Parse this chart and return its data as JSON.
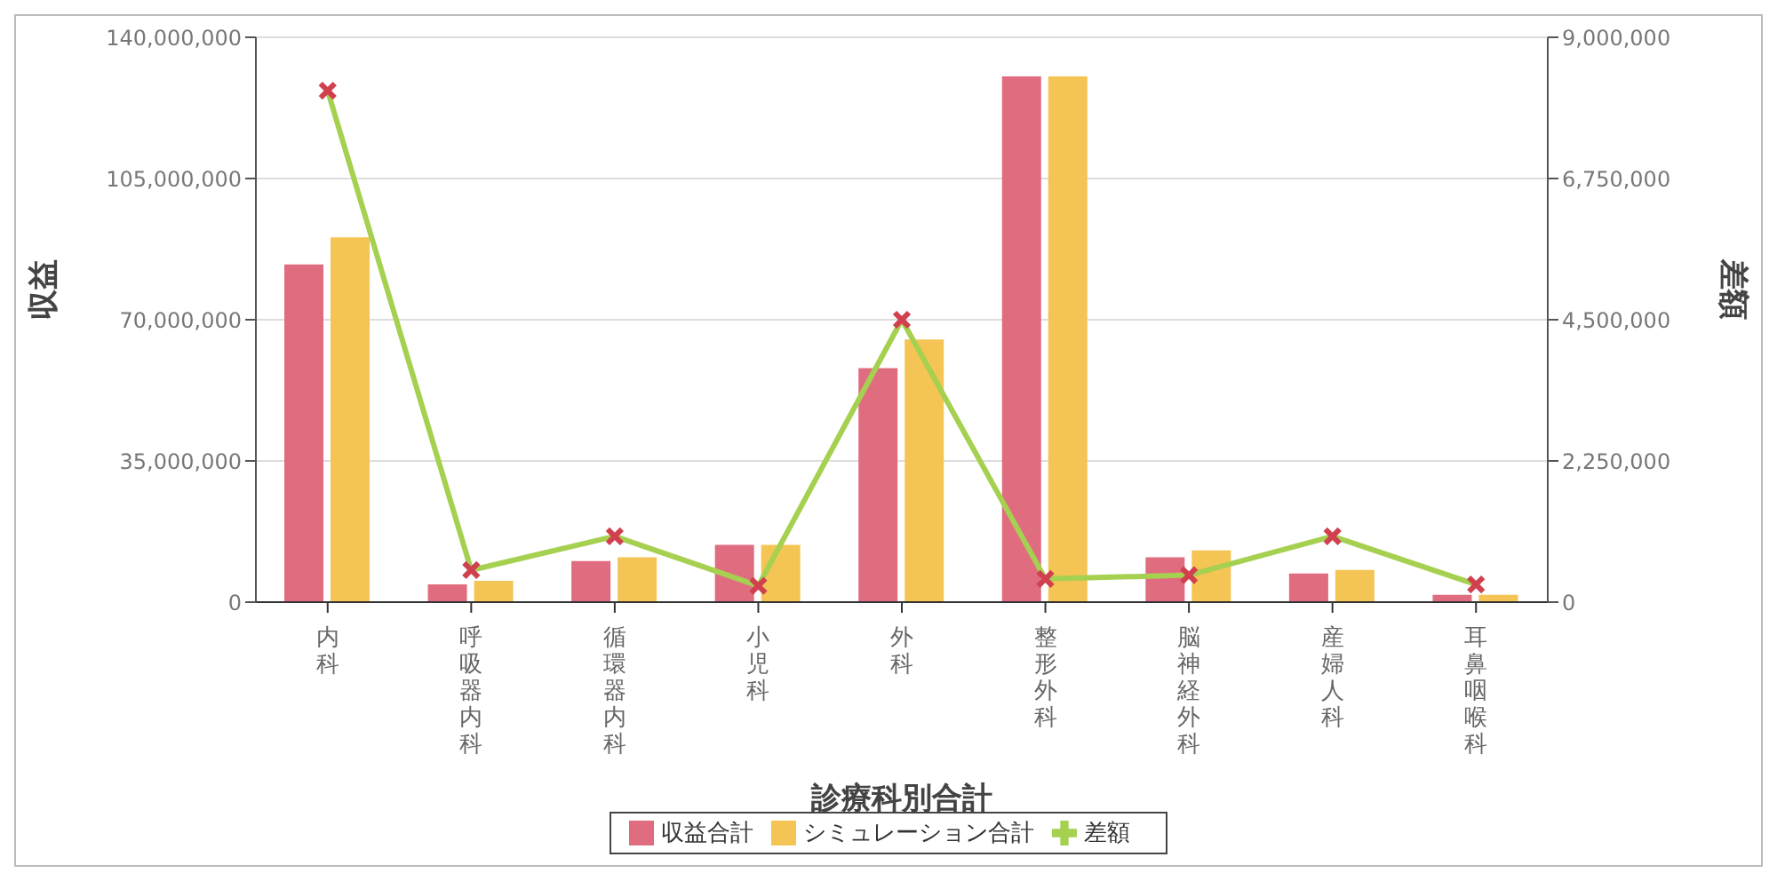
{
  "chart_data": {
    "type": "bar",
    "xlabel": "診療科別合計",
    "ylabel": "収益",
    "y2label": "差額",
    "categories": [
      "内科",
      "呼吸器内科",
      "循環器内科",
      "小児科",
      "外科",
      "整形外科",
      "脳神経外科",
      "産婦人科",
      "耳鼻咽喉科"
    ],
    "series": [
      {
        "name": "収益合計",
        "color": "#e06c80",
        "values": [
          83700000,
          4400000,
          10200000,
          14200000,
          58000000,
          130300000,
          11100000,
          7100000,
          1800000
        ]
      },
      {
        "name": "シミュレーション合計",
        "color": "#f4c555",
        "values": [
          90400000,
          5300000,
          11100000,
          14200000,
          65100000,
          130300000,
          12800000,
          8000000,
          1800000
        ]
      },
      {
        "name": "差額",
        "type": "line",
        "axis": "y2",
        "color": "#a5d050",
        "marker": "cross",
        "values": [
          8150000,
          510000,
          1050000,
          260000,
          4500000,
          370000,
          430000,
          1050000,
          280000
        ]
      }
    ],
    "ylim": [
      0,
      140000000
    ],
    "yticks": [
      0,
      {
        "value": 35000000,
        "label": "35,000,000"
      },
      {
        "value": 70000000,
        "label": "70,000,000"
      },
      {
        "value": 105000000,
        "label": "105,000,000"
      },
      {
        "value": 140000000,
        "label": "140,000,000"
      }
    ],
    "y2lim": [
      0,
      9000000
    ],
    "y2ticks": [
      0,
      {
        "value": 2250000,
        "label": "2,250,000"
      },
      {
        "value": 4500000,
        "label": "4,500,000"
      },
      {
        "value": 6750000,
        "label": "6,750,000"
      },
      {
        "value": 9000000,
        "label": "9,000,000"
      }
    ],
    "grid": "y",
    "legend": "bottom"
  }
}
